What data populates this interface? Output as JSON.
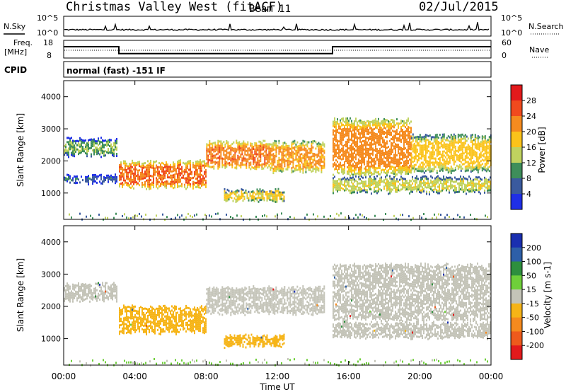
{
  "header": {
    "station": "Christmas Valley West (fitACF)",
    "beam": "Beam 11",
    "date": "02/Jul/2015"
  },
  "nsky_panel": {
    "left_label": "N.Sky",
    "right_label": "N.Search",
    "left_ticks": [
      "10^5",
      "10^0"
    ],
    "right_ticks": [
      "10^5",
      "10^0"
    ]
  },
  "freq_panel": {
    "left_label_line1": "Freq.",
    "left_label_line2": "[MHz]",
    "right_label": "Nave",
    "left_ticks": [
      "18",
      "8"
    ],
    "right_ticks": [
      "60",
      "0"
    ],
    "freq_steps": [
      {
        "from": 0,
        "to": 3.1,
        "value": 14.4
      },
      {
        "from": 3.1,
        "to": 15.1,
        "value": 10.5
      },
      {
        "from": 15.1,
        "to": 24,
        "value": 14.4
      }
    ]
  },
  "cpid_panel": {
    "label": "CPID",
    "mode_text": "normal (fast) -151 IF"
  },
  "power_panel": {
    "ylabel": "Slant Range [km]",
    "yticks": [
      "4000",
      "3000",
      "2000",
      "1000"
    ],
    "colorbar_label": "Power [dB]",
    "colorbar_ticks": [
      "28",
      "24",
      "20",
      "16",
      "12",
      "8",
      "4"
    ],
    "colors": [
      "#e31a1c",
      "#f04a1e",
      "#f58b1f",
      "#fbc31a",
      "#c0d25f",
      "#3e8e5a",
      "#3a5a9e",
      "#1f2fe6"
    ]
  },
  "velocity_panel": {
    "ylabel": "Slant Range [km]",
    "yticks": [
      "4000",
      "3000",
      "2000",
      "1000"
    ],
    "colorbar_label": "Velocity [m s-1]",
    "colorbar_ticks": [
      "200",
      "100",
      "50",
      "15",
      "-15",
      "-50",
      "-100",
      "-200"
    ],
    "colors": [
      "#1a2fb0",
      "#2e5fa8",
      "#2e8f3e",
      "#6fcf3a",
      "#c4c4b8",
      "#f6b417",
      "#f58a1e",
      "#ee5a1c",
      "#e31a1c"
    ]
  },
  "x_axis": {
    "label": "Time UT",
    "ticks": [
      "00:00",
      "04:00",
      "08:00",
      "12:00",
      "16:00",
      "20:00",
      "00:00"
    ]
  },
  "chart_data": [
    {
      "type": "line",
      "title": "Christmas Valley West (fitACF) Beam 11 02/Jul/2015",
      "xlabel": "Time UT",
      "ylabel": "Freq. [MHz]",
      "x": [
        0,
        3.1,
        3.1,
        15.1,
        15.1,
        24
      ],
      "values": [
        14.4,
        14.4,
        10.5,
        10.5,
        14.4,
        14.4
      ],
      "ylim": [
        8,
        18
      ]
    },
    {
      "type": "heatmap",
      "ylabel": "Slant Range [km]",
      "colorbar_label": "Power [dB]",
      "xlim": [
        0,
        24
      ],
      "ylim": [
        180,
        4500
      ],
      "scatter_bands": [
        {
          "t0": 0.0,
          "t1": 3.0,
          "lo": 2200,
          "hi": 2700,
          "power": 14
        },
        {
          "t0": 0.0,
          "t1": 3.0,
          "lo": 1350,
          "hi": 1550,
          "power": 9
        },
        {
          "t0": 3.1,
          "t1": 8.0,
          "lo": 1200,
          "hi": 2000,
          "power": 26
        },
        {
          "t0": 8.0,
          "t1": 11.5,
          "lo": 1800,
          "hi": 2600,
          "power": 25
        },
        {
          "t0": 11.5,
          "t1": 14.6,
          "lo": 1700,
          "hi": 2600,
          "power": 23
        },
        {
          "t0": 9.0,
          "t1": 12.4,
          "lo": 780,
          "hi": 1100,
          "power": 19
        },
        {
          "t0": 15.1,
          "t1": 19.5,
          "lo": 1600,
          "hi": 3300,
          "power": 24
        },
        {
          "t0": 19.5,
          "t1": 24.0,
          "lo": 1700,
          "hi": 2800,
          "power": 20
        },
        {
          "t0": 15.1,
          "t1": 24.0,
          "lo": 1050,
          "hi": 1500,
          "power": 17
        }
      ]
    },
    {
      "type": "heatmap",
      "ylabel": "Slant Range [km]",
      "colorbar_label": "Velocity [m s-1]",
      "xlim": [
        0,
        24
      ],
      "ylim": [
        180,
        4500
      ],
      "scatter_bands": [
        {
          "t0": 0.0,
          "t1": 3.0,
          "lo": 2200,
          "hi": 2700,
          "velocity": 0
        },
        {
          "t0": 3.1,
          "t1": 8.0,
          "lo": 1200,
          "hi": 2000,
          "velocity": -30
        },
        {
          "t0": 8.0,
          "t1": 14.6,
          "lo": 1800,
          "hi": 2600,
          "velocity": 0
        },
        {
          "t0": 9.0,
          "t1": 12.4,
          "lo": 780,
          "hi": 1100,
          "velocity": -40
        },
        {
          "t0": 15.1,
          "t1": 24.0,
          "lo": 1600,
          "hi": 3300,
          "velocity": 0
        },
        {
          "t0": 15.1,
          "t1": 24.0,
          "lo": 1050,
          "hi": 1500,
          "velocity": 0
        }
      ]
    }
  ]
}
